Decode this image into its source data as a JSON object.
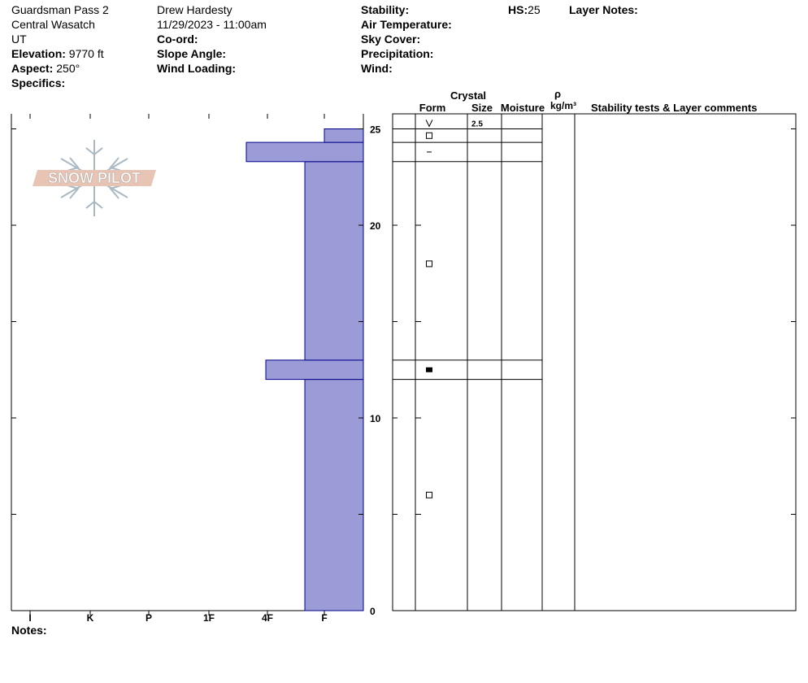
{
  "header": {
    "location": "Guardsman Pass 2",
    "range": "Central Wasatch",
    "state": "UT",
    "elevation_label": "Elevation:",
    "elevation_value": "9770 ft",
    "aspect_label": "Aspect:",
    "aspect_value": "250°",
    "specifics_label": "Specifics:",
    "observer": "Drew Hardesty",
    "datetime": "11/29/2023 - 11:00am",
    "coord_label": "Co-ord:",
    "slope_label": "Slope Angle:",
    "wind_loading_label": "Wind Loading:",
    "stability_label": "Stability:",
    "air_temp_label": "Air Temperature:",
    "sky_cover_label": "Sky Cover:",
    "precip_label": "Precipitation:",
    "wind_label": "Wind:",
    "hs_label": "HS:",
    "hs_value": "25",
    "layer_notes_label": "Layer Notes:"
  },
  "logo": {
    "text": "SNOW PILOT"
  },
  "notes_label": "Notes:",
  "columns": {
    "crystal": "Crystal",
    "form": "Form",
    "size": "Size",
    "moisture": "Moisture",
    "rho": "ρ",
    "density_unit": "kg/m³",
    "comments": "Stability tests & Layer comments"
  },
  "colors": {
    "bar_fill": "#9b9bd7",
    "bar_stroke": "#00008b",
    "logo_fill": "#e8c4b4",
    "logo_snowflake": "#a9b8c2"
  },
  "chart_data": {
    "type": "bar",
    "orientation": "horizontal",
    "x_categories": [
      "I",
      "K",
      "P",
      "1F",
      "4F",
      "F"
    ],
    "x_direction": "hardness decreases to the right",
    "y_ticks": [
      "0",
      "10",
      "20",
      "25"
    ],
    "ylim": [
      0,
      25.6
    ],
    "layers": [
      {
        "bottom": 0,
        "top": 12,
        "hardness": "4F-"
      },
      {
        "bottom": 12,
        "top": 13,
        "hardness": "4F+",
        "form": "■"
      },
      {
        "bottom": 13,
        "top": 23.3,
        "hardness": "4F-"
      },
      {
        "bottom": 23.3,
        "top": 24.3,
        "hardness": "1F-",
        "form": "−"
      },
      {
        "bottom": 24.3,
        "top": 25,
        "hardness": "F",
        "form": "□"
      },
      {
        "bottom": 25,
        "top": 25.6,
        "form": "∨",
        "size": "2.5"
      }
    ],
    "form_markers": [
      {
        "height": 6,
        "symbol": "□"
      },
      {
        "height": 18,
        "symbol": "□"
      }
    ]
  }
}
